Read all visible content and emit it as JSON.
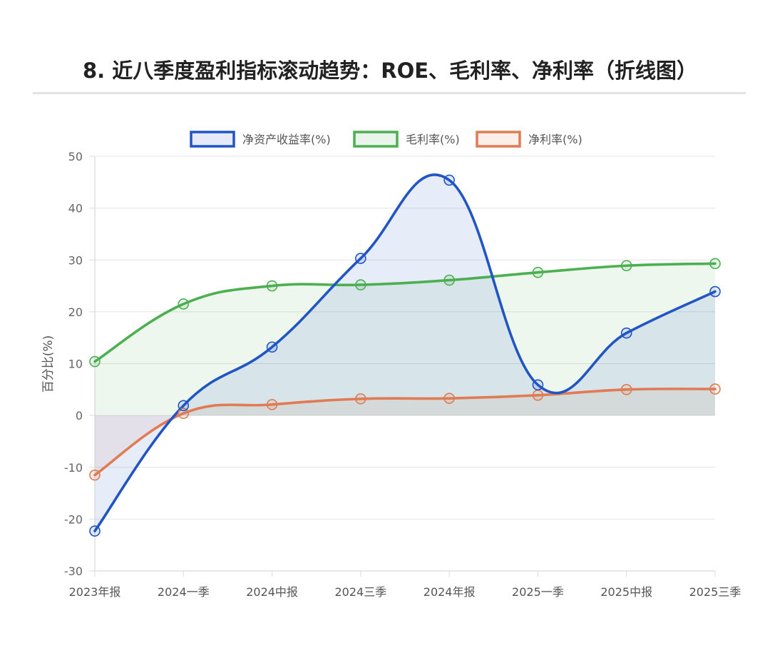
{
  "title": "8. 近八季度盈利指标滚动趋势：ROE、毛利率、净利率（折线图）",
  "chart_data": {
    "type": "line",
    "ylabel": "百分比(%)",
    "xlabel": "",
    "ylim": [
      -30,
      50
    ],
    "yticks": [
      50,
      40,
      30,
      20,
      10,
      0,
      -10,
      -20,
      -30
    ],
    "categories": [
      "2023年报",
      "2024一季",
      "2024中报",
      "2024三季",
      "2024年报",
      "2025一季",
      "2025中报",
      "2025三季"
    ],
    "grid": true,
    "legend_position": "top",
    "fill": true,
    "smooth": true,
    "series": [
      {
        "name": "净资产收益率(%)",
        "color": "#2155c4",
        "values": [
          -22.3,
          1.9,
          13.2,
          30.3,
          45.4,
          5.9,
          15.9,
          23.9
        ]
      },
      {
        "name": "毛利率(%)",
        "color": "#4caf50",
        "values": [
          10.4,
          21.5,
          25.0,
          25.2,
          26.1,
          27.6,
          28.9,
          29.3
        ]
      },
      {
        "name": "净利率(%)",
        "color": "#e07b53",
        "values": [
          -11.5,
          0.4,
          2.1,
          3.2,
          3.3,
          3.9,
          5.0,
          5.1
        ]
      }
    ]
  }
}
